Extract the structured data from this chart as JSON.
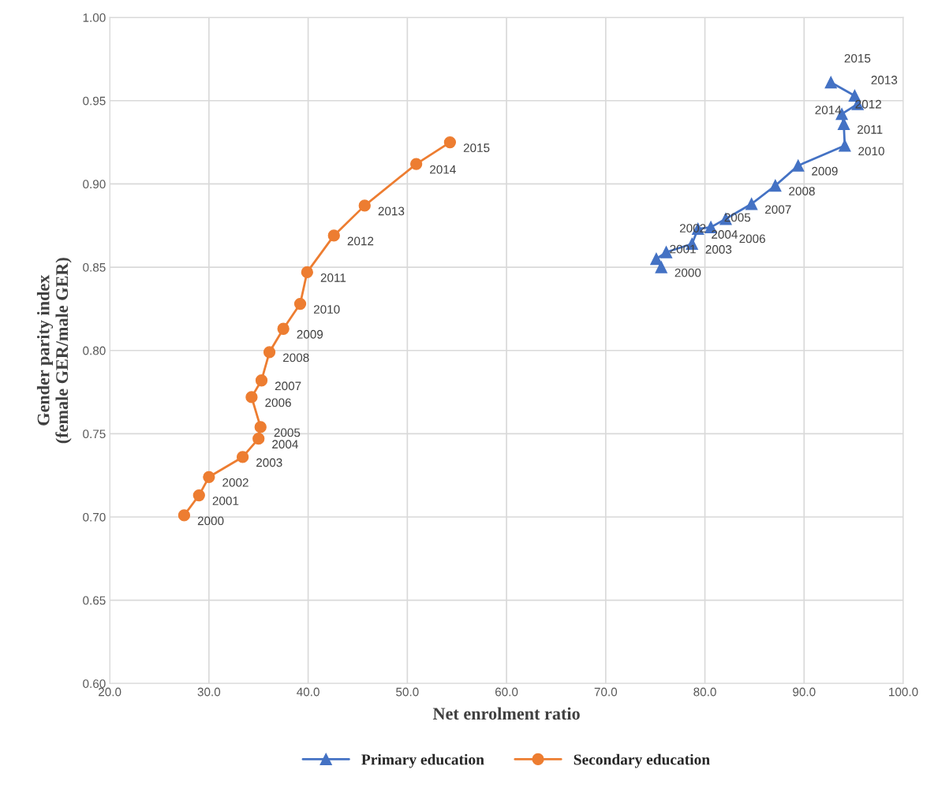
{
  "chart_data": {
    "type": "line",
    "xlabel": "Net enrolment ratio",
    "ylabel": "Gender parity index\n(female GER/male GER)",
    "xlim": [
      20,
      100
    ],
    "xticks": [
      {
        "value": 20,
        "label": "20.0"
      },
      {
        "value": 30,
        "label": "30.0"
      },
      {
        "value": 40,
        "label": "40.0"
      },
      {
        "value": 50,
        "label": "50.0"
      },
      {
        "value": 60,
        "label": "60.0"
      },
      {
        "value": 70,
        "label": "70.0"
      },
      {
        "value": 80,
        "label": "80.0"
      },
      {
        "value": 90,
        "label": "90.0"
      },
      {
        "value": 100,
        "label": "100.0"
      }
    ],
    "ylim": [
      0.6,
      1.0
    ],
    "yticks": [
      {
        "value": 0.6,
        "label": "0.60"
      },
      {
        "value": 0.65,
        "label": "0.65"
      },
      {
        "value": 0.7,
        "label": "0.70"
      },
      {
        "value": 0.75,
        "label": "0.75"
      },
      {
        "value": 0.8,
        "label": "0.80"
      },
      {
        "value": 0.85,
        "label": "0.85"
      },
      {
        "value": 0.9,
        "label": "0.90"
      },
      {
        "value": 0.95,
        "label": "0.95"
      },
      {
        "value": 1.0,
        "label": "1.00"
      }
    ],
    "grid": true,
    "legend": "bottom",
    "series": [
      {
        "name": "Primary education",
        "color": "#4472c4",
        "marker": "triangle",
        "x": [
          75.6,
          75.1,
          76.1,
          78.7,
          79.3,
          80.6,
          82.1,
          84.7,
          87.1,
          89.4,
          94.1,
          94.0,
          93.8,
          95.4,
          95.1,
          92.7
        ],
        "values": [
          0.85,
          0.855,
          0.859,
          0.864,
          0.873,
          0.874,
          0.879,
          0.888,
          0.899,
          0.911,
          0.923,
          0.936,
          0.942,
          0.948,
          0.953,
          0.961
        ]
      },
      {
        "name": "Secondary education",
        "color": "#ed7d31",
        "marker": "circle",
        "x": [
          27.5,
          29.0,
          30.0,
          33.4,
          35.0,
          35.2,
          34.3,
          35.3,
          36.1,
          37.5,
          39.2,
          39.9,
          42.6,
          45.7,
          50.9,
          54.3
        ],
        "values": [
          0.701,
          0.713,
          0.724,
          0.736,
          0.747,
          0.754,
          0.772,
          0.782,
          0.799,
          0.813,
          0.828,
          0.847,
          0.869,
          0.887,
          0.912,
          0.925
        ]
      }
    ],
    "annotations": [
      {
        "text": "2000",
        "x": 75.6,
        "y": 0.85
      },
      {
        "text": "2001",
        "x": 75.1,
        "y": 0.855
      },
      {
        "text": "2002",
        "x": 76.1,
        "y": 0.859
      },
      {
        "text": "2003",
        "x": 78.7,
        "y": 0.864
      },
      {
        "text": "2004",
        "x": 79.3,
        "y": 0.873
      },
      {
        "text": "2005",
        "x": 80.6,
        "y": 0.874
      },
      {
        "text": "2006",
        "x": 82.1,
        "y": 0.879
      },
      {
        "text": "2007",
        "x": 84.7,
        "y": 0.888
      },
      {
        "text": "2008",
        "x": 87.1,
        "y": 0.899
      },
      {
        "text": "2009",
        "x": 89.4,
        "y": 0.911
      },
      {
        "text": "2010",
        "x": 94.1,
        "y": 0.923
      },
      {
        "text": "2011",
        "x": 94.0,
        "y": 0.936
      },
      {
        "text": "2012",
        "x": 93.8,
        "y": 0.942
      },
      {
        "text": "2013",
        "x": 95.4,
        "y": 0.948
      },
      {
        "text": "2014",
        "x": 95.1,
        "y": 0.953
      },
      {
        "text": "2015",
        "x": 92.7,
        "y": 0.961
      },
      {
        "text": "2000",
        "x": 27.5,
        "y": 0.701
      },
      {
        "text": "2001",
        "x": 29.0,
        "y": 0.713
      },
      {
        "text": "2002",
        "x": 30.0,
        "y": 0.724
      },
      {
        "text": "2003",
        "x": 33.4,
        "y": 0.736
      },
      {
        "text": "2004",
        "x": 35.0,
        "y": 0.747
      },
      {
        "text": "2005",
        "x": 35.2,
        "y": 0.754
      },
      {
        "text": "2006",
        "x": 34.3,
        "y": 0.772
      },
      {
        "text": "2007",
        "x": 35.3,
        "y": 0.782
      },
      {
        "text": "2008",
        "x": 36.1,
        "y": 0.799
      },
      {
        "text": "2009",
        "x": 37.5,
        "y": 0.813
      },
      {
        "text": "2010",
        "x": 39.2,
        "y": 0.828
      },
      {
        "text": "2011",
        "x": 39.9,
        "y": 0.847
      },
      {
        "text": "2012",
        "x": 42.6,
        "y": 0.869
      },
      {
        "text": "2013",
        "x": 45.7,
        "y": 0.887
      },
      {
        "text": "2014",
        "x": 50.9,
        "y": 0.912
      },
      {
        "text": "2015",
        "x": 54.3,
        "y": 0.925
      }
    ]
  }
}
